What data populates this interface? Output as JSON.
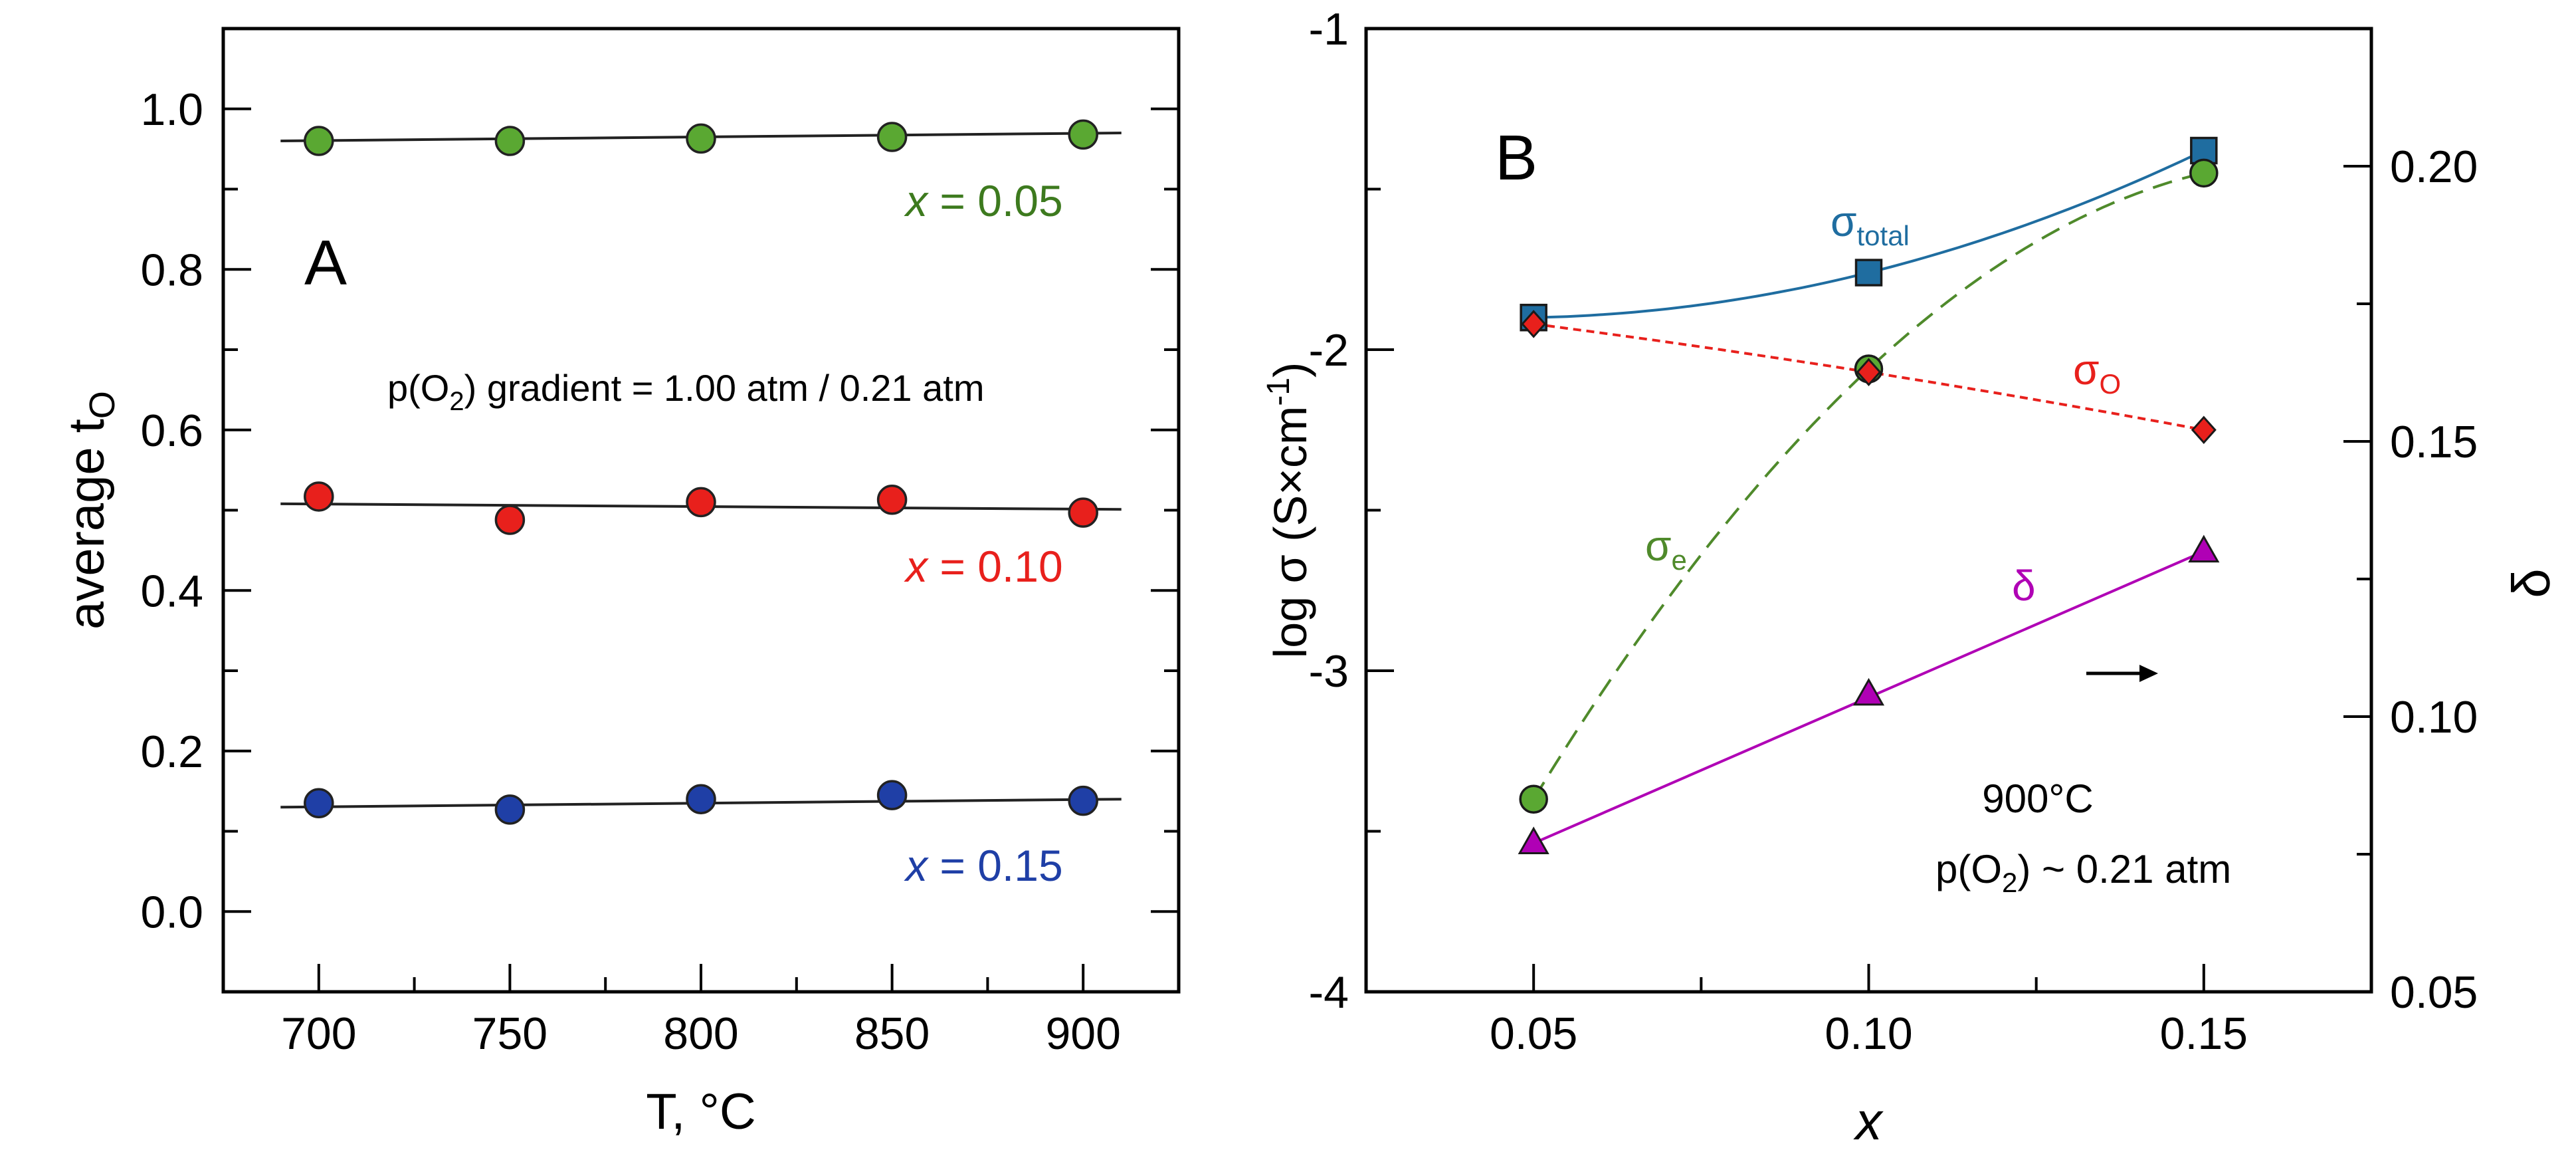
{
  "chart_data": [
    {
      "panel": "A",
      "type": "scatter",
      "xlabel": "T, °C",
      "ylabel": {
        "main": "average t",
        "sub": "O"
      },
      "xlim": [
        675,
        925
      ],
      "ylim": [
        -0.1,
        1.1
      ],
      "x_ticks": [
        700,
        750,
        800,
        850,
        900
      ],
      "x_tick_labels": [
        "700",
        "750",
        "800",
        "850",
        "900"
      ],
      "y_ticks": [
        0.0,
        0.2,
        0.4,
        0.6,
        0.8,
        1.0
      ],
      "y_tick_labels": [
        "0.0",
        "0.2",
        "0.4",
        "0.6",
        "0.8",
        "1.0"
      ],
      "annotation": {
        "pre": "p(O",
        "sub": "2",
        "post": ") gradient = 1.00 atm / 0.21 atm"
      },
      "series": [
        {
          "name": "x = 0.05",
          "label_var": "x",
          "label_value": " = 0.05",
          "color": "#5aa832",
          "label_color": "#3d7a1e",
          "x": [
            700,
            750,
            800,
            850,
            900
          ],
          "values": [
            0.96,
            0.96,
            0.963,
            0.965,
            0.968
          ],
          "fit": [
            [
              690,
              0.96
            ],
            [
              910,
              0.97
            ]
          ]
        },
        {
          "name": "x = 0.10",
          "label_var": "x",
          "label_value": " = 0.10",
          "color": "#e8201c",
          "label_color": "#e8201c",
          "x": [
            700,
            750,
            800,
            850,
            900
          ],
          "values": [
            0.517,
            0.488,
            0.51,
            0.513,
            0.497
          ],
          "fit": [
            [
              690,
              0.508
            ],
            [
              910,
              0.501
            ]
          ]
        },
        {
          "name": "x = 0.15",
          "label_var": "x",
          "label_value": " = 0.15",
          "color": "#1f3fa6",
          "label_color": "#1f3fa6",
          "x": [
            700,
            750,
            800,
            850,
            900
          ],
          "values": [
            0.135,
            0.127,
            0.14,
            0.145,
            0.138
          ],
          "fit": [
            [
              690,
              0.13
            ],
            [
              910,
              0.14
            ]
          ]
        }
      ]
    },
    {
      "panel": "B",
      "type": "line",
      "xlabel": "x",
      "ylabel": {
        "main": "log σ (S×cm",
        "sup": "-1",
        "end": ")"
      },
      "y2label": "δ",
      "xlim": [
        0.025,
        0.175
      ],
      "ylim": [
        -4,
        -1
      ],
      "y2lim": [
        0.05,
        0.225
      ],
      "x_ticks": [
        0.05,
        0.1,
        0.15
      ],
      "x_tick_labels": [
        "0.05",
        "0.10",
        "0.15"
      ],
      "y_ticks": [
        -4,
        -3,
        -2,
        -1
      ],
      "y_tick_labels": [
        "-4",
        "-3",
        "-2",
        "-1"
      ],
      "y2_ticks": [
        0.05,
        0.1,
        0.15,
        0.2
      ],
      "y2_tick_labels": [
        "0.05",
        "0.10",
        "0.15",
        "0.20"
      ],
      "annotation": {
        "line1": "900°C",
        "line2_pre": "p(O",
        "line2_sub": "2",
        "line2_post": ") ~ 0.21 atm"
      },
      "series": [
        {
          "name": "σtotal",
          "label_main": "σ",
          "label_sub": "total",
          "color": "#1f6da0",
          "marker": "square",
          "axis": "left",
          "x": [
            0.05,
            0.1,
            0.15
          ],
          "values": [
            -1.9,
            -1.76,
            -1.38
          ]
        },
        {
          "name": "σO",
          "label_main": "σ",
          "label_sub": "O",
          "color": "#e8201c",
          "marker": "diamond",
          "axis": "left",
          "x": [
            0.05,
            0.1,
            0.15
          ],
          "values": [
            -1.92,
            -2.07,
            -2.25
          ]
        },
        {
          "name": "σe",
          "label_main": "σ",
          "label_sub": "e",
          "color": "#4f8a2b",
          "marker": "circle",
          "axis": "left",
          "x": [
            0.05,
            0.1,
            0.15
          ],
          "values": [
            -3.4,
            -2.06,
            -1.45
          ]
        },
        {
          "name": "δ",
          "label_main": "δ",
          "label_sub": "",
          "color": "#b000b5",
          "marker": "triangle",
          "axis": "right",
          "x": [
            0.05,
            0.1,
            0.15
          ],
          "values": [
            0.077,
            0.104,
            0.13
          ]
        }
      ]
    }
  ]
}
